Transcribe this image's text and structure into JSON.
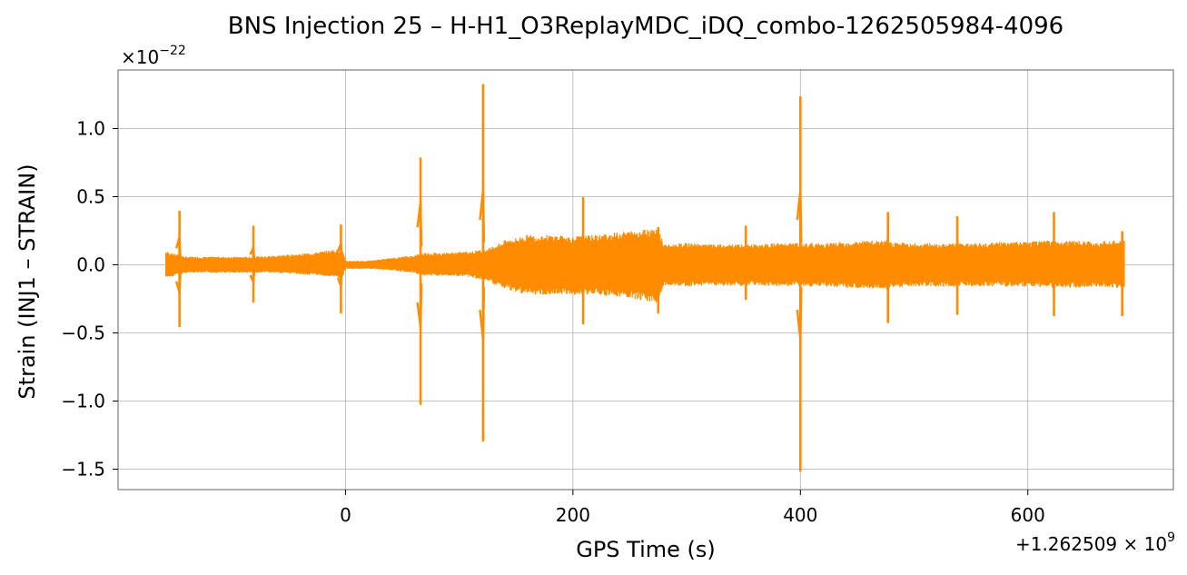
{
  "chart_data": {
    "type": "line",
    "title": "BNS Injection 25 – H-H1_O3ReplayMDC_iDQ_combo-1262505984-4096",
    "xlabel": "GPS Time (s)",
    "ylabel": "Strain (INJ1 – STRAIN)",
    "x_offset_label": "+1.262509 × 10",
    "x_offset_exponent": "9",
    "y_scale_label": "×10",
    "y_scale_exponent": "−22",
    "xlim": [
      -200,
      728
    ],
    "ylim": [
      -1.65,
      1.43
    ],
    "xticks": [
      {
        "value": 0,
        "label": "0"
      },
      {
        "value": 200,
        "label": "200"
      },
      {
        "value": 400,
        "label": "400"
      },
      {
        "value": 600,
        "label": "600"
      }
    ],
    "yticks": [
      {
        "value": 1.0,
        "label": "1.0"
      },
      {
        "value": 0.5,
        "label": "0.5"
      },
      {
        "value": 0.0,
        "label": "0.0"
      },
      {
        "value": -0.5,
        "label": "−0.5"
      },
      {
        "value": -1.0,
        "label": "−1.0"
      },
      {
        "value": -1.5,
        "label": "−1.5"
      }
    ],
    "grid": true,
    "line_color": "#ff8c00",
    "series": [
      {
        "envelope": [
          [
            -158,
            -0.1,
            0.1
          ],
          [
            -150,
            -0.08,
            0.08
          ],
          [
            -140,
            -0.06,
            0.06
          ],
          [
            -120,
            -0.06,
            0.06
          ],
          [
            -100,
            -0.06,
            0.06
          ],
          [
            -80,
            -0.06,
            0.06
          ],
          [
            -60,
            -0.06,
            0.07
          ],
          [
            -40,
            -0.07,
            0.08
          ],
          [
            -20,
            -0.08,
            0.1
          ],
          [
            -3,
            -0.1,
            0.12
          ],
          [
            0,
            -0.03,
            0.03
          ],
          [
            20,
            -0.03,
            0.03
          ],
          [
            40,
            -0.04,
            0.05
          ],
          [
            60,
            -0.06,
            0.07
          ],
          [
            70,
            -0.08,
            0.09
          ],
          [
            90,
            -0.08,
            0.09
          ],
          [
            110,
            -0.09,
            0.1
          ],
          [
            125,
            -0.12,
            0.12
          ],
          [
            140,
            -0.18,
            0.18
          ],
          [
            160,
            -0.22,
            0.22
          ],
          [
            180,
            -0.22,
            0.22
          ],
          [
            200,
            -0.22,
            0.21
          ],
          [
            220,
            -0.22,
            0.22
          ],
          [
            240,
            -0.24,
            0.24
          ],
          [
            260,
            -0.26,
            0.26
          ],
          [
            275,
            -0.28,
            0.28
          ],
          [
            280,
            -0.15,
            0.15
          ],
          [
            300,
            -0.16,
            0.16
          ],
          [
            320,
            -0.15,
            0.15
          ],
          [
            340,
            -0.16,
            0.15
          ],
          [
            360,
            -0.15,
            0.15
          ],
          [
            380,
            -0.16,
            0.16
          ],
          [
            400,
            -0.16,
            0.16
          ],
          [
            420,
            -0.16,
            0.16
          ],
          [
            440,
            -0.17,
            0.17
          ],
          [
            460,
            -0.18,
            0.18
          ],
          [
            480,
            -0.17,
            0.17
          ],
          [
            500,
            -0.16,
            0.16
          ],
          [
            520,
            -0.16,
            0.16
          ],
          [
            540,
            -0.16,
            0.16
          ],
          [
            560,
            -0.16,
            0.16
          ],
          [
            580,
            -0.16,
            0.17
          ],
          [
            600,
            -0.16,
            0.17
          ],
          [
            620,
            -0.17,
            0.18
          ],
          [
            640,
            -0.17,
            0.18
          ],
          [
            660,
            -0.16,
            0.17
          ],
          [
            680,
            -0.17,
            0.18
          ],
          [
            685,
            -0.17,
            0.18
          ]
        ],
        "spikes": [
          [
            -146,
            -0.45,
            0.39
          ],
          [
            -81,
            -0.27,
            0.28
          ],
          [
            -4,
            -0.35,
            0.29
          ],
          [
            66,
            -1.02,
            0.78
          ],
          [
            121,
            -1.29,
            1.32
          ],
          [
            209,
            -0.43,
            0.49
          ],
          [
            275,
            -0.35,
            0.27
          ],
          [
            352,
            -0.25,
            0.28
          ],
          [
            400,
            -1.51,
            1.23
          ],
          [
            477,
            -0.42,
            0.38
          ],
          [
            538,
            -0.36,
            0.35
          ],
          [
            623,
            -0.37,
            0.38
          ],
          [
            683,
            -0.37,
            0.24
          ]
        ]
      }
    ]
  }
}
